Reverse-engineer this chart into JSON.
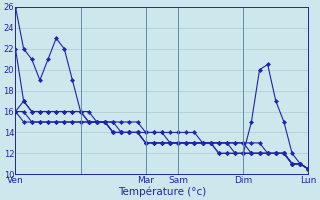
{
  "bg_color": "#cce8ec",
  "grid_color": "#aacccc",
  "line_color": "#2222aa",
  "xlabel": "Température (°c)",
  "ylim": [
    10,
    26
  ],
  "yticks": [
    10,
    12,
    14,
    16,
    18,
    20,
    22,
    24,
    26
  ],
  "xlim": [
    0,
    36
  ],
  "day_ticks": [
    0,
    8,
    16,
    20,
    28,
    36
  ],
  "day_labels": [
    "Ven",
    "",
    "Mar",
    "Sam",
    "Dim",
    "Lun"
  ],
  "vlines": [
    0,
    8,
    16,
    20,
    28,
    36
  ],
  "lines": [
    {
      "x": [
        0,
        1,
        2,
        3,
        4,
        5,
        6,
        7,
        8,
        9,
        10,
        11,
        12,
        13,
        14,
        15,
        16,
        17,
        18,
        19,
        20,
        21,
        22,
        23,
        24,
        25,
        26,
        27,
        28,
        29,
        30,
        31,
        32,
        33,
        34,
        35,
        36
      ],
      "y": [
        26,
        22,
        21,
        19,
        21,
        23,
        22,
        19,
        16,
        16,
        15,
        15,
        14,
        14,
        14,
        14,
        13,
        13,
        13,
        13,
        13,
        13,
        13,
        13,
        13,
        12,
        12,
        12,
        12,
        12,
        12,
        12,
        12,
        12,
        11,
        11,
        10.5
      ]
    },
    {
      "x": [
        0,
        1,
        2,
        3,
        4,
        5,
        6,
        7,
        8,
        9,
        10,
        11,
        12,
        13,
        14,
        15,
        16,
        17,
        18,
        19,
        20,
        21,
        22,
        23,
        24,
        25,
        26,
        27,
        28,
        29,
        30,
        31,
        32,
        33,
        34,
        35,
        36
      ],
      "y": [
        22,
        17,
        16,
        16,
        16,
        16,
        16,
        16,
        16,
        15,
        15,
        15,
        14,
        14,
        14,
        14,
        13,
        13,
        13,
        13,
        13,
        13,
        13,
        13,
        13,
        12,
        12,
        12,
        12,
        12,
        12,
        12,
        12,
        12,
        11,
        11,
        10.5
      ]
    },
    {
      "x": [
        0,
        1,
        2,
        3,
        4,
        5,
        6,
        7,
        8,
        9,
        10,
        11,
        12,
        13,
        14,
        15,
        16,
        17,
        18,
        19,
        20,
        21,
        22,
        23,
        24,
        25,
        26,
        27,
        28,
        29,
        30,
        31,
        32,
        33,
        34,
        35,
        36
      ],
      "y": [
        16,
        17,
        16,
        16,
        16,
        16,
        16,
        16,
        16,
        15,
        15,
        15,
        15,
        15,
        15,
        15,
        14,
        14,
        14,
        14,
        14,
        14,
        14,
        13,
        13,
        13,
        13,
        13,
        13,
        13,
        13,
        12,
        12,
        12,
        11,
        11,
        10.5
      ]
    },
    {
      "x": [
        0,
        1,
        2,
        3,
        4,
        5,
        6,
        7,
        8,
        9,
        10,
        11,
        12,
        13,
        14,
        15,
        16,
        17,
        18,
        19,
        20,
        21,
        22,
        23,
        24,
        25,
        26,
        27,
        28,
        29,
        30,
        31,
        32,
        33,
        34,
        35,
        36
      ],
      "y": [
        16,
        16,
        15,
        15,
        15,
        15,
        15,
        15,
        15,
        15,
        15,
        15,
        15,
        14,
        14,
        14,
        14,
        14,
        14,
        13,
        13,
        13,
        13,
        13,
        13,
        13,
        13,
        13,
        13,
        12,
        12,
        12,
        12,
        12,
        11,
        11,
        10.5
      ]
    },
    {
      "x": [
        0,
        1,
        2,
        3,
        4,
        5,
        6,
        7,
        8,
        9,
        10,
        11,
        12,
        13,
        14,
        15,
        16,
        17,
        18,
        19,
        20,
        21,
        22,
        23,
        24,
        25,
        26,
        27,
        28,
        29,
        30,
        31,
        32,
        33,
        34,
        35,
        36
      ],
      "y": [
        16,
        15,
        15,
        15,
        15,
        15,
        15,
        15,
        15,
        15,
        15,
        15,
        14,
        14,
        14,
        14,
        13,
        13,
        13,
        13,
        13,
        13,
        13,
        13,
        13,
        13,
        13,
        12,
        12,
        12,
        12,
        12,
        12,
        12,
        11,
        11,
        10.5
      ]
    },
    {
      "x": [
        28,
        29,
        30,
        31,
        32,
        33,
        34,
        35,
        36
      ],
      "y": [
        12,
        15,
        20,
        20.5,
        17,
        15,
        12,
        11,
        10.5
      ]
    }
  ]
}
